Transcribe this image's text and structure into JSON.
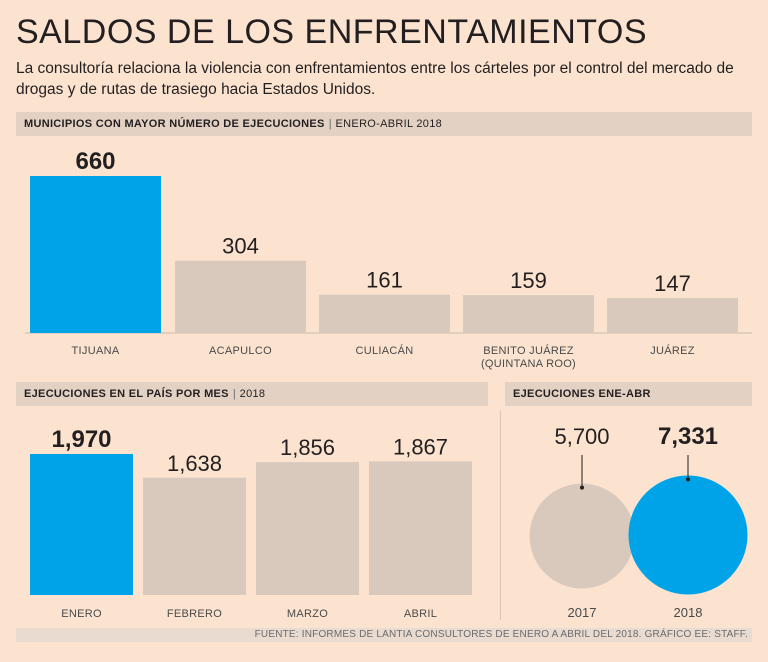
{
  "title": "SALDOS DE LOS ENFRENTAMIENTOS",
  "subtitle": "La consultoría relaciona la violencia con enfrentamientos entre los cárteles por el control del mercado de drogas y de rutas de trasiego hacia Estados Unidos.",
  "colors": {
    "background": "#fbe3cf",
    "highlight": "#00a3e8",
    "neutral": "#d8c9bc",
    "header_band": "#e3d2c4",
    "text": "#231f20"
  },
  "source": "FUENTE: INFORMES DE LANTIA CONSULTORES DE ENERO A ABRIL DEL 2018. GRÁFICO EE: STAFF.",
  "chart_data": [
    {
      "type": "bar",
      "title": "MUNICIPIOS CON MAYOR NÚMERO DE EJECUCIONES",
      "period": "ENERO-ABRIL 2018",
      "categories": [
        "TIJUANA",
        "ACAPULCO",
        "CULIACÁN",
        "BENITO JUÁREZ (QUINTANA ROO)",
        "JUÁREZ"
      ],
      "category_lines": [
        [
          "TIJUANA"
        ],
        [
          "ACAPULCO"
        ],
        [
          "CULIACÁN"
        ],
        [
          "BENITO JUÁREZ",
          "(QUINTANA ROO)"
        ],
        [
          "JUÁREZ"
        ]
      ],
      "values": [
        660,
        304,
        161,
        159,
        147
      ],
      "value_labels": [
        "660",
        "304",
        "161",
        "159",
        "147"
      ],
      "highlight_index": 0,
      "ylim": [
        0,
        660
      ]
    },
    {
      "type": "bar",
      "title": "EJECUCIONES EN EL PAÍS POR MES",
      "period": "2018",
      "categories": [
        "ENERO",
        "FEBRERO",
        "MARZO",
        "ABRIL"
      ],
      "values": [
        1970,
        1638,
        1856,
        1867
      ],
      "value_labels": [
        "1,970",
        "1,638",
        "1,856",
        "1,867"
      ],
      "highlight_index": 0,
      "ylim": [
        0,
        1970
      ]
    },
    {
      "type": "bubble",
      "title": "EJECUCIONES ENE-ABR",
      "categories": [
        "2017",
        "2018"
      ],
      "values": [
        5700,
        7331
      ],
      "value_labels": [
        "5,700",
        "7,331"
      ],
      "highlight_index": 1
    }
  ]
}
